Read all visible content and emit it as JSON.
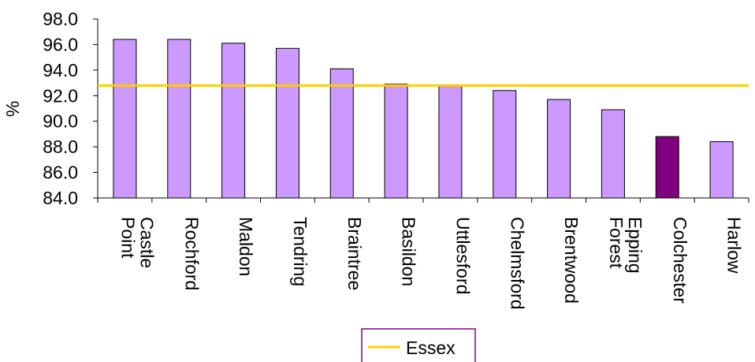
{
  "chart_data": {
    "type": "bar",
    "ylabel": "%",
    "ylim": [
      84.0,
      98.0
    ],
    "yticks": [
      "84.0",
      "86.0",
      "88.0",
      "90.0",
      "92.0",
      "94.0",
      "96.0",
      "98.0"
    ],
    "categories": [
      [
        "Castle",
        "Point"
      ],
      [
        "Rochford"
      ],
      [
        "Maldon"
      ],
      [
        "Tendring"
      ],
      [
        "Braintree"
      ],
      [
        "Basildon"
      ],
      [
        "Uttlesford"
      ],
      [
        "Chelmsford"
      ],
      [
        "Brentwood"
      ],
      [
        "Epping",
        "Forest"
      ],
      [
        "Colchester"
      ],
      [
        "Harlow"
      ]
    ],
    "values": [
      96.4,
      96.4,
      96.1,
      95.7,
      94.1,
      92.9,
      92.8,
      92.4,
      91.7,
      90.9,
      88.8,
      88.4
    ],
    "highlight_index": 10,
    "bar_color": "#cc99ff",
    "highlight_color": "#800080",
    "reference_line": {
      "name": "Essex",
      "value": 92.8,
      "color": "#ffcc00"
    },
    "legend": {
      "position": "bottom",
      "border_color": "#800080"
    }
  }
}
